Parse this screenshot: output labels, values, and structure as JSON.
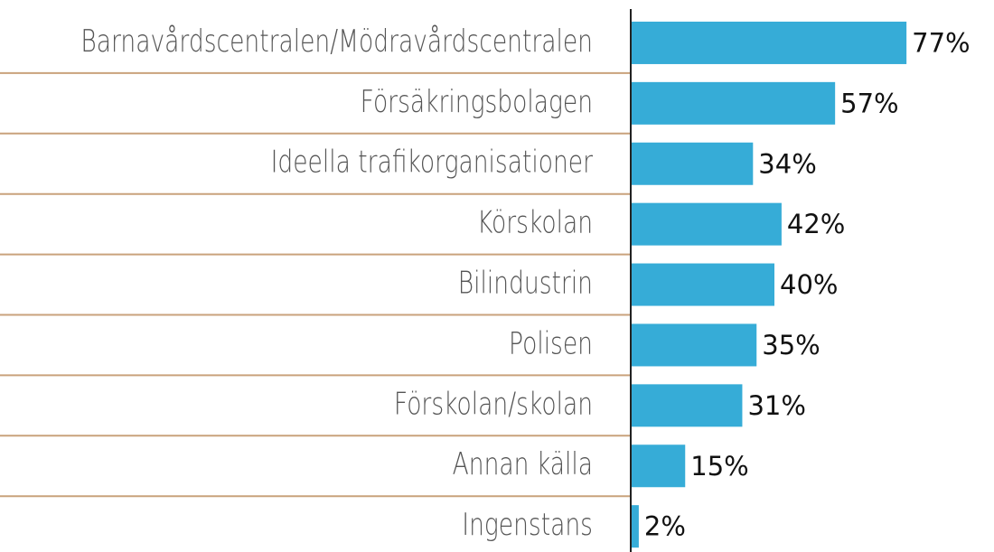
{
  "chart_data": {
    "type": "bar",
    "orientation": "horizontal",
    "color": "#36acd7",
    "categories": [
      "Barnavårdscentralen/Mödravårdscentralen",
      "Försäkringsbolagen",
      "Ideella trafikorganisationer",
      "Körskolan",
      "Bilindustrin",
      "Polisen",
      "Förskolan/skolan",
      "Annan källa",
      "Ingenstans"
    ],
    "values": [
      77,
      57,
      34,
      42,
      40,
      35,
      31,
      15,
      2
    ],
    "value_labels": [
      "77%",
      "57%",
      "34%",
      "42%",
      "40%",
      "35%",
      "31%",
      "15%",
      "2%"
    ]
  }
}
